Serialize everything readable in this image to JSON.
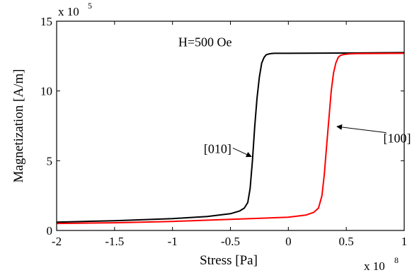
{
  "chart_data": {
    "type": "line",
    "xlabel": "Stress [Pa]",
    "ylabel": "Magnetization [A/m]",
    "x_multiplier_label": "x 10",
    "x_multiplier_exp": "8",
    "y_multiplier_label": "x 10",
    "y_multiplier_exp": "5",
    "xlim": [
      -2,
      1
    ],
    "ylim": [
      0,
      15
    ],
    "x_ticks": [
      -2,
      -1.5,
      -1,
      -0.5,
      0,
      0.5,
      1
    ],
    "x_tick_labels": [
      "-2",
      "-1.5",
      "-1",
      "-0.5",
      "0",
      "0.5",
      "1"
    ],
    "y_ticks": [
      0,
      5,
      10,
      15
    ],
    "y_tick_labels": [
      "0",
      "5",
      "10",
      "15"
    ],
    "grid": false,
    "series": [
      {
        "color": "#000000",
        "x": [
          -2,
          -1.5,
          -1,
          -0.7,
          -0.5,
          -0.42,
          -0.38,
          -0.35,
          -0.33,
          -0.31,
          -0.29,
          -0.27,
          -0.25,
          -0.23,
          -0.21,
          -0.19,
          -0.17,
          -0.15,
          -0.12,
          -0.05,
          0,
          0.5,
          1
        ],
        "y": [
          0.6,
          0.7,
          0.85,
          1.0,
          1.2,
          1.4,
          1.6,
          2.0,
          3.0,
          5.0,
          7.5,
          9.5,
          11.0,
          12.0,
          12.4,
          12.6,
          12.65,
          12.68,
          12.7,
          12.7,
          12.7,
          12.72,
          12.75
        ]
      },
      {
        "color": "#ff0000",
        "x": [
          -2,
          -1.5,
          -1,
          -0.5,
          0,
          0.15,
          0.22,
          0.26,
          0.29,
          0.31,
          0.33,
          0.35,
          0.37,
          0.39,
          0.41,
          0.43,
          0.45,
          0.48,
          0.52,
          0.6,
          1
        ],
        "y": [
          0.5,
          0.55,
          0.65,
          0.8,
          0.95,
          1.1,
          1.3,
          1.6,
          2.5,
          4.0,
          6.0,
          8.0,
          10.0,
          11.3,
          12.0,
          12.4,
          12.55,
          12.62,
          12.66,
          12.68,
          12.7
        ]
      }
    ],
    "annotations": [
      {
        "text": "H=500 Oe",
        "x": -0.95,
        "y": 13.2
      },
      {
        "text": "[010]",
        "x": -0.73,
        "y": 5.55,
        "arrow_to": [
          -0.32,
          5.3
        ]
      },
      {
        "text": "[100]",
        "x": 0.82,
        "y": 6.3,
        "arrow_to": [
          0.42,
          7.45
        ]
      }
    ]
  }
}
